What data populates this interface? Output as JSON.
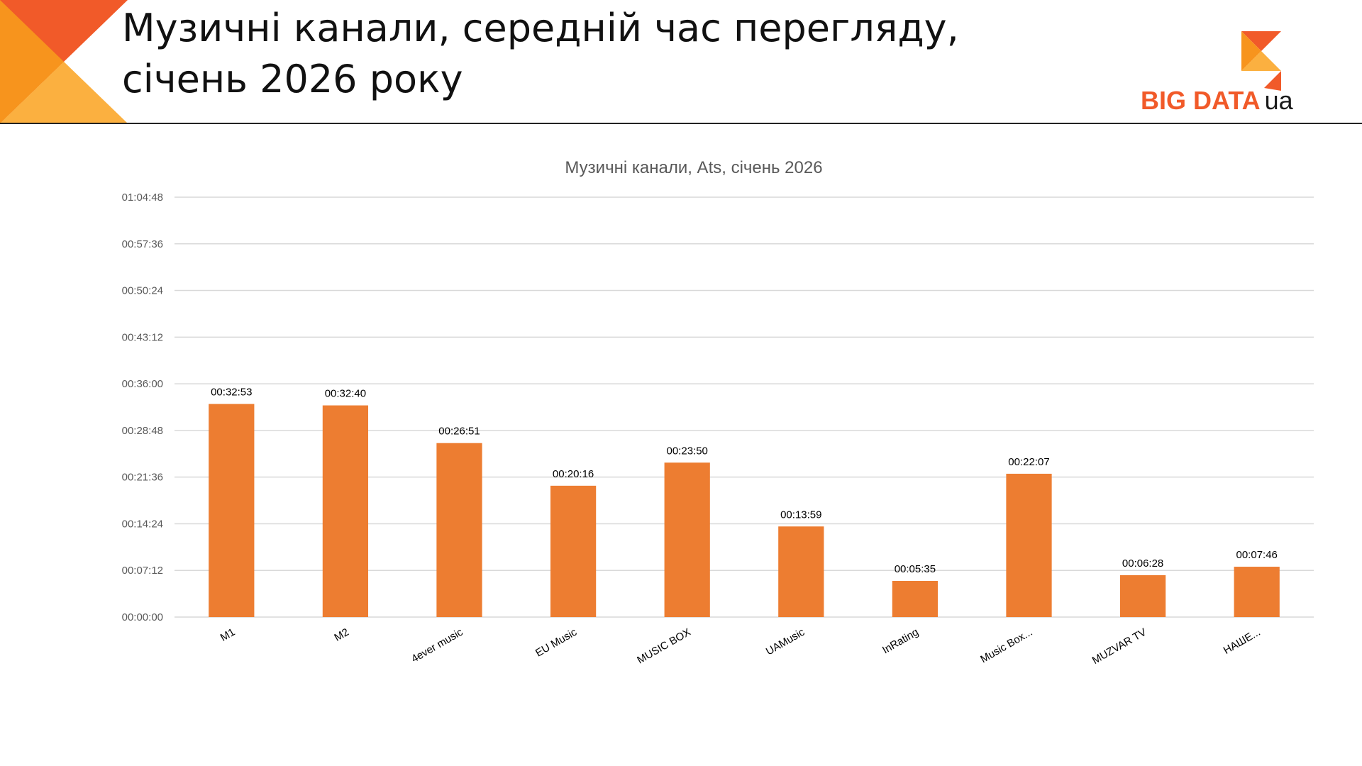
{
  "header": {
    "title_line1": "Музичні канали, середній час перегляду,",
    "title_line2": "січень 2026 року"
  },
  "logo": {
    "text_main": "BIG DATA",
    "text_suffix": "ua"
  },
  "colors": {
    "accent": "#F15A29",
    "orange_light": "#FBB040",
    "orange_mid": "#F7941D",
    "bar": "#ED7D31",
    "grid": "#D9D9D9",
    "rule": "#222222"
  },
  "chart_data": {
    "type": "bar",
    "title": "Музичні канали, Ats, січень 2026",
    "xlabel": "",
    "ylabel": "",
    "categories": [
      "M1",
      "M2",
      "4ever music",
      "EU Music",
      "MUSIC BOX",
      "UAMusic",
      "InRating",
      "Music Box...",
      "MUZVAR TV",
      "НАШЕ..."
    ],
    "values_seconds": [
      1973,
      1960,
      1611,
      1216,
      1430,
      839,
      335,
      1327,
      388,
      466
    ],
    "value_labels": [
      "00:32:53",
      "00:32:40",
      "00:26:51",
      "00:20:16",
      "00:23:50",
      "00:13:59",
      "00:05:35",
      "00:22:07",
      "00:06:28",
      "00:07:46"
    ],
    "ylim_seconds": [
      0,
      3888
    ],
    "yticks": [
      "00:00:00",
      "00:07:12",
      "00:14:24",
      "00:21:36",
      "00:28:48",
      "00:36:00",
      "00:43:12",
      "00:50:24",
      "00:57:36",
      "01:04:48"
    ],
    "grid": true,
    "legend": "none"
  }
}
